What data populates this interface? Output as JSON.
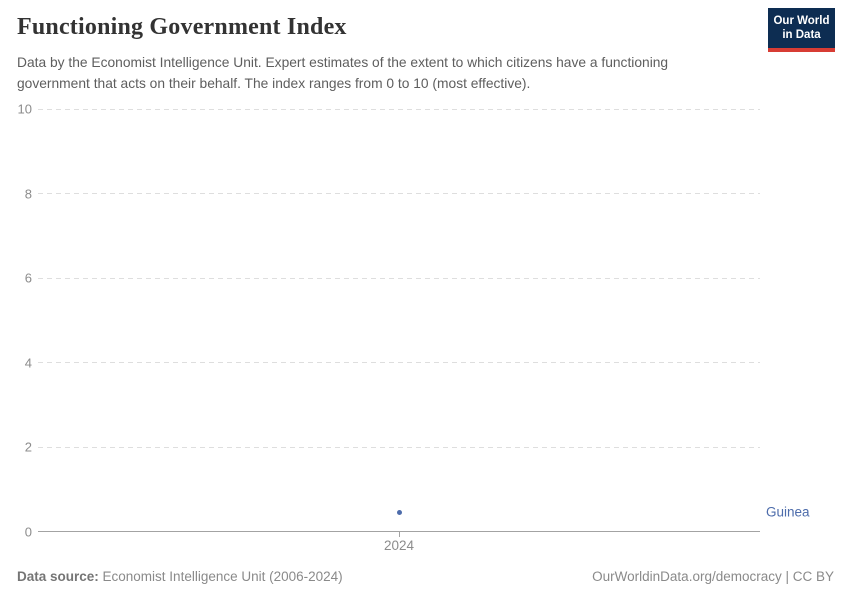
{
  "header": {
    "title": "Functioning Government Index",
    "subtitle": "Data by the Economist Intelligence Unit. Expert estimates of the extent to which citizens have a functioning government that acts on their behalf. The index ranges from 0 to 10 (most effective).",
    "logo": {
      "line1": "Our World",
      "line2": "in Data"
    }
  },
  "chart_data": {
    "type": "scatter",
    "title": "Functioning Government Index",
    "x": [
      2024
    ],
    "xticklabels": [
      "2024"
    ],
    "series": [
      {
        "name": "Guinea",
        "values": [
          0.45
        ]
      }
    ],
    "ylim": [
      0,
      10
    ],
    "yticks": [
      0,
      2,
      4,
      6,
      8,
      10
    ],
    "grid": "horizontal dashed, solid baseline at 0",
    "legend": "entity label to the right of the data point"
  },
  "footer": {
    "source_label": "Data source:",
    "source_value": " Economist Intelligence Unit (2006-2024)",
    "link": "OurWorldinData.org/democracy | CC BY"
  },
  "colors": {
    "series": "#4d6cab",
    "logo_navy": "#0d2d52",
    "logo_red": "#d73c34",
    "grid": "#dedede",
    "axis": "#a3a3a3",
    "tick_text": "#8c8c8c",
    "subtitle_text": "#5e5e5e"
  }
}
